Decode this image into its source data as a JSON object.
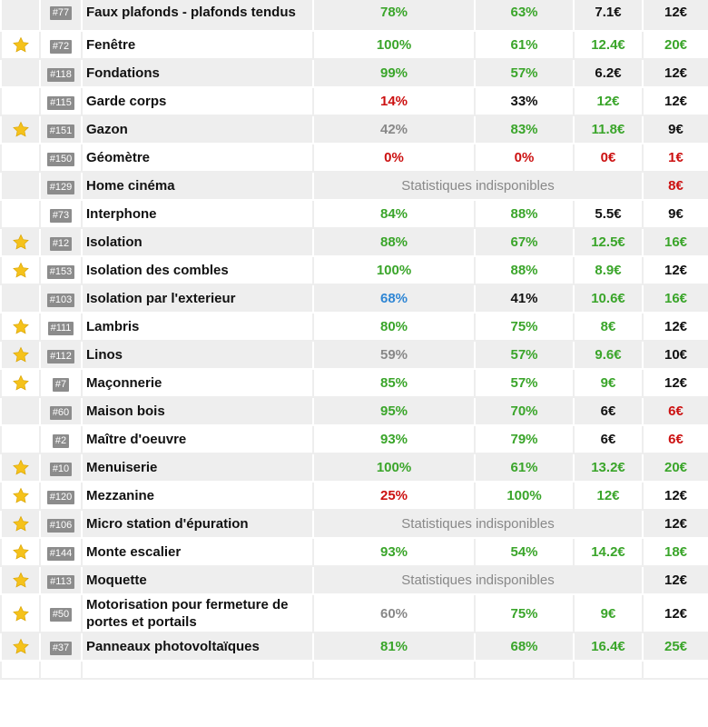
{
  "icons": {
    "star": "star-icon"
  },
  "colors": {
    "green": "#3aa52a",
    "red": "#cc1111",
    "gray": "#888888",
    "blue": "#2f86d4",
    "black": "#111111",
    "star": "#f5c21b",
    "row_alt": "#eeeeee"
  },
  "unavailable_label": "Statistiques indisponibles",
  "rows": [
    {
      "star": false,
      "id": "#77",
      "name": "Faux plafonds - plafonds tendus",
      "c1": "78%",
      "c1c": "green",
      "c2": "63%",
      "c2c": "green",
      "c3": "7.1€",
      "c3c": "black",
      "c4": "12€",
      "c4c": "black",
      "na": false
    },
    {
      "star": true,
      "id": "#72",
      "name": "Fenêtre",
      "c1": "100%",
      "c1c": "green",
      "c2": "61%",
      "c2c": "green",
      "c3": "12.4€",
      "c3c": "green",
      "c4": "20€",
      "c4c": "green",
      "na": false
    },
    {
      "star": false,
      "id": "#118",
      "name": "Fondations",
      "c1": "99%",
      "c1c": "green",
      "c2": "57%",
      "c2c": "green",
      "c3": "6.2€",
      "c3c": "black",
      "c4": "12€",
      "c4c": "black",
      "na": false
    },
    {
      "star": false,
      "id": "#115",
      "name": "Garde corps",
      "c1": "14%",
      "c1c": "red",
      "c2": "33%",
      "c2c": "black",
      "c3": "12€",
      "c3c": "green",
      "c4": "12€",
      "c4c": "black",
      "na": false
    },
    {
      "star": true,
      "id": "#151",
      "name": "Gazon",
      "c1": "42%",
      "c1c": "gray",
      "c2": "83%",
      "c2c": "green",
      "c3": "11.8€",
      "c3c": "green",
      "c4": "9€",
      "c4c": "black",
      "na": false
    },
    {
      "star": false,
      "id": "#150",
      "name": "Géomètre",
      "c1": "0%",
      "c1c": "red",
      "c2": "0%",
      "c2c": "red",
      "c3": "0€",
      "c3c": "red",
      "c4": "1€",
      "c4c": "red",
      "na": false
    },
    {
      "star": false,
      "id": "#129",
      "name": "Home cinéma",
      "na": true,
      "c4": "8€",
      "c4c": "red"
    },
    {
      "star": false,
      "id": "#73",
      "name": "Interphone",
      "c1": "84%",
      "c1c": "green",
      "c2": "88%",
      "c2c": "green",
      "c3": "5.5€",
      "c3c": "black",
      "c4": "9€",
      "c4c": "black",
      "na": false
    },
    {
      "star": true,
      "id": "#12",
      "name": "Isolation",
      "c1": "88%",
      "c1c": "green",
      "c2": "67%",
      "c2c": "green",
      "c3": "12.5€",
      "c3c": "green",
      "c4": "16€",
      "c4c": "green",
      "na": false
    },
    {
      "star": true,
      "id": "#153",
      "name": "Isolation des combles",
      "c1": "100%",
      "c1c": "green",
      "c2": "88%",
      "c2c": "green",
      "c3": "8.9€",
      "c3c": "green",
      "c4": "12€",
      "c4c": "black",
      "na": false
    },
    {
      "star": false,
      "id": "#103",
      "name": "Isolation par l'exterieur",
      "c1": "68%",
      "c1c": "blue",
      "c2": "41%",
      "c2c": "black",
      "c3": "10.6€",
      "c3c": "green",
      "c4": "16€",
      "c4c": "green",
      "na": false
    },
    {
      "star": true,
      "id": "#111",
      "name": "Lambris",
      "c1": "80%",
      "c1c": "green",
      "c2": "75%",
      "c2c": "green",
      "c3": "8€",
      "c3c": "green",
      "c4": "12€",
      "c4c": "black",
      "na": false
    },
    {
      "star": true,
      "id": "#112",
      "name": "Linos",
      "c1": "59%",
      "c1c": "gray",
      "c2": "57%",
      "c2c": "green",
      "c3": "9.6€",
      "c3c": "green",
      "c4": "10€",
      "c4c": "black",
      "na": false
    },
    {
      "star": true,
      "id": "#7",
      "name": "Maçonnerie",
      "c1": "85%",
      "c1c": "green",
      "c2": "57%",
      "c2c": "green",
      "c3": "9€",
      "c3c": "green",
      "c4": "12€",
      "c4c": "black",
      "na": false
    },
    {
      "star": false,
      "id": "#60",
      "name": "Maison bois",
      "c1": "95%",
      "c1c": "green",
      "c2": "70%",
      "c2c": "green",
      "c3": "6€",
      "c3c": "black",
      "c4": "6€",
      "c4c": "red",
      "na": false
    },
    {
      "star": false,
      "id": "#2",
      "name": "Maître d'oeuvre",
      "c1": "93%",
      "c1c": "green",
      "c2": "79%",
      "c2c": "green",
      "c3": "6€",
      "c3c": "black",
      "c4": "6€",
      "c4c": "red",
      "na": false
    },
    {
      "star": true,
      "id": "#10",
      "name": "Menuiserie",
      "c1": "100%",
      "c1c": "green",
      "c2": "61%",
      "c2c": "green",
      "c3": "13.2€",
      "c3c": "green",
      "c4": "20€",
      "c4c": "green",
      "na": false
    },
    {
      "star": true,
      "id": "#120",
      "name": "Mezzanine",
      "c1": "25%",
      "c1c": "red",
      "c2": "100%",
      "c2c": "green",
      "c3": "12€",
      "c3c": "green",
      "c4": "12€",
      "c4c": "black",
      "na": false
    },
    {
      "star": true,
      "id": "#106",
      "name": "Micro station d'épuration",
      "na": true,
      "c4": "12€",
      "c4c": "black"
    },
    {
      "star": true,
      "id": "#144",
      "name": "Monte escalier",
      "c1": "93%",
      "c1c": "green",
      "c2": "54%",
      "c2c": "green",
      "c3": "14.2€",
      "c3c": "green",
      "c4": "18€",
      "c4c": "green",
      "na": false
    },
    {
      "star": true,
      "id": "#113",
      "name": "Moquette",
      "na": true,
      "c4": "12€",
      "c4c": "black"
    },
    {
      "star": true,
      "id": "#50",
      "name": "Motorisation pour fermeture de portes et portails",
      "c1": "60%",
      "c1c": "gray",
      "c2": "75%",
      "c2c": "green",
      "c3": "9€",
      "c3c": "green",
      "c4": "12€",
      "c4c": "black",
      "na": false
    },
    {
      "star": true,
      "id": "#37",
      "name": "Panneaux photovoltaïques",
      "c1": "81%",
      "c1c": "green",
      "c2": "68%",
      "c2c": "green",
      "c3": "16.4€",
      "c3c": "green",
      "c4": "25€",
      "c4c": "green",
      "na": false
    },
    {
      "star": false,
      "id": "",
      "name": "",
      "c1": "",
      "c1c": "black",
      "c2": "",
      "c2c": "black",
      "c3": "",
      "c3c": "black",
      "c4": "",
      "c4c": "black",
      "na": false
    }
  ]
}
